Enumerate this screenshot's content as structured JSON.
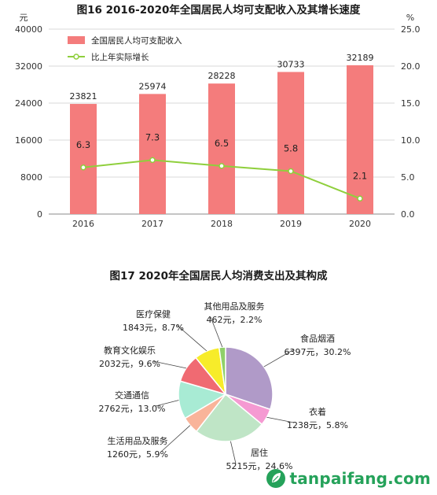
{
  "chart_data": [
    {
      "type": "bar",
      "title": "图16   2016-2020年全国居民人均可支配收入及其增长速度",
      "categories": [
        "2016",
        "2017",
        "2018",
        "2019",
        "2020"
      ],
      "series": [
        {
          "name": "全国居民人均可支配收入",
          "values": [
            23821,
            25974,
            28228,
            30733,
            32189
          ],
          "color": "#f47c7c",
          "axis": "left"
        },
        {
          "name": "比上年实际增长",
          "values": [
            6.3,
            7.3,
            6.5,
            5.8,
            2.1
          ],
          "color": "#8fcf3c",
          "axis": "right",
          "type": "line"
        }
      ],
      "ylabel_left": "元",
      "ylabel_right": "%",
      "ylim_left": [
        0,
        40000
      ],
      "ylim_right": [
        0,
        25
      ],
      "yticks_left": [
        "0",
        "8000",
        "16000",
        "24000",
        "32000",
        "40000"
      ],
      "yticks_right": [
        "0.0",
        "5.0",
        "10.0",
        "15.0",
        "20.0",
        "25.0"
      ],
      "grid": true,
      "legend": "top-left",
      "data_labels": true
    },
    {
      "type": "pie",
      "title": "图17    2020年全国居民人均消费支出及其构成",
      "slices": [
        {
          "name": "食品烟酒",
          "label": "6397元，30.2%",
          "value": 30.2,
          "color": "#b09ac8"
        },
        {
          "name": "衣着",
          "label": "1238元，5.8%",
          "value": 5.8,
          "color": "#f59ad2"
        },
        {
          "name": "居住",
          "label": "5215元，24.6%",
          "value": 24.6,
          "color": "#bfe5c6"
        },
        {
          "name": "生活用品及服务",
          "label": "1260元，5.9%",
          "value": 5.9,
          "color": "#f9b49a"
        },
        {
          "name": "交通通信",
          "label": "2762元，13.0%",
          "value": 13.0,
          "color": "#a8ebd4"
        },
        {
          "name": "教育文化娱乐",
          "label": "2032元，9.6%",
          "value": 9.6,
          "color": "#f06a72"
        },
        {
          "name": "医疗保健",
          "label": "1843元，8.7%",
          "value": 8.7,
          "color": "#f7ec2a"
        },
        {
          "name": "其他用品及服务",
          "label": "462元，2.2%",
          "value": 2.2,
          "color": "#8fd06a"
        }
      ]
    }
  ],
  "watermark": {
    "text": "tanpaifang.com",
    "icon": "leaf-logo-icon",
    "color": "#25a25a"
  }
}
